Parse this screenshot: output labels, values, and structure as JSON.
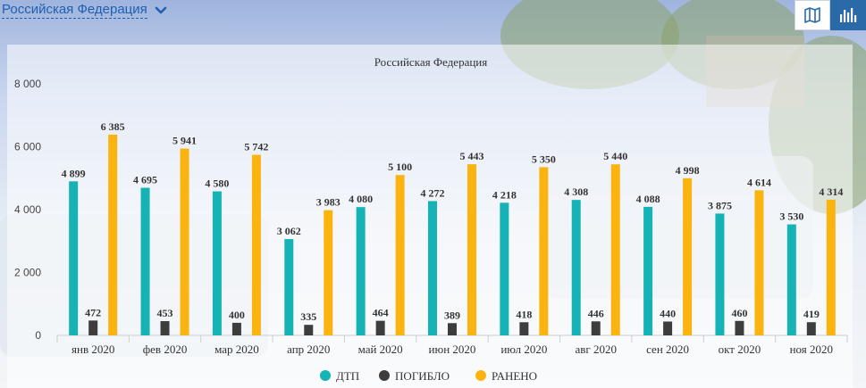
{
  "header": {
    "region_label": "Российская Федерация"
  },
  "view_buttons": {
    "map_icon": "map-icon",
    "bars_icon": "bar-chart-icon"
  },
  "colors": {
    "dtp": "#15b3b5",
    "killed": "#3d3d3d",
    "injured": "#fbb30f",
    "link": "#1f5fb0",
    "active_button": "#2a6aa8"
  },
  "chart_data": {
    "type": "bar",
    "title": "Российская Федерация",
    "categories": [
      "янв 2020",
      "фев 2020",
      "мар 2020",
      "апр 2020",
      "май 2020",
      "июн 2020",
      "июл 2020",
      "авг 2020",
      "сен 2020",
      "окт 2020",
      "ноя 2020"
    ],
    "series": [
      {
        "name": "ДТП",
        "values": [
          4899,
          4695,
          4580,
          3062,
          4080,
          4272,
          4218,
          4308,
          4088,
          3875,
          3530
        ]
      },
      {
        "name": "ПОГИБЛО",
        "values": [
          472,
          453,
          400,
          335,
          464,
          389,
          418,
          446,
          440,
          460,
          419
        ]
      },
      {
        "name": "РАНЕНО",
        "values": [
          6385,
          5941,
          5742,
          3983,
          5100,
          5443,
          5350,
          5440,
          4998,
          4614,
          4314
        ]
      }
    ],
    "yticks": [
      "0",
      "2 000",
      "4 000",
      "6 000",
      "8 000"
    ],
    "ylim": [
      0,
      8000
    ],
    "grid": false,
    "legend": "bottom-center"
  }
}
